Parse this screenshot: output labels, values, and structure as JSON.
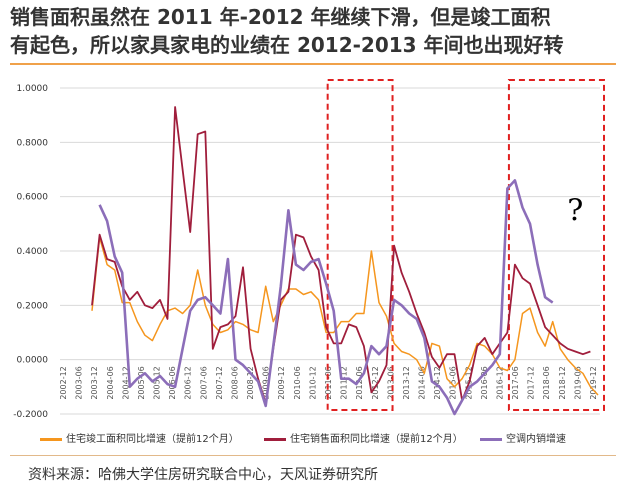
{
  "title": {
    "line1": "销售面积虽然在 2011 年-2012 年继续下滑，但是竣工面积",
    "line2": "有起色，所以家具家电的业绩在 2012-2013 年间也出现好转"
  },
  "source": "资料来源：哈佛大学住房研究联合中心，天风证券研究所",
  "colors": {
    "orange": "#f5961e",
    "crimson": "#a01e3c",
    "purple": "#8c6eb9",
    "highlight": "#e02020"
  },
  "annotation": "?",
  "chart_data": {
    "type": "line",
    "ylim": [
      -0.2,
      1.0
    ],
    "yticks": [
      -0.2,
      0.0,
      0.2,
      0.4,
      0.6,
      0.8,
      1.0
    ],
    "ytick_labels": [
      "-0.2000",
      "0.0000",
      "0.2000",
      "0.4000",
      "0.6000",
      "0.8000",
      "1.0000"
    ],
    "xstart": 2003.0,
    "xend": 2019.75,
    "xtick_labels": [
      "2002-12",
      "2003-06",
      "2003-12",
      "2004-06",
      "2004-12",
      "2005-06",
      "2005-12",
      "2006-06",
      "2006-12",
      "2007-06",
      "2007-12",
      "2008-06",
      "2008-12",
      "2009-06",
      "2009-12",
      "2010-06",
      "2010-12",
      "2011-06",
      "2011-12",
      "2012-06",
      "2012-12",
      "2013-06",
      "2013-12",
      "2014-06",
      "2014-12",
      "2015-06",
      "2015-12",
      "2016-06",
      "2016-12",
      "2017-06",
      "2017-12",
      "2018-06",
      "2018-12",
      "2019-06",
      "2019-12"
    ],
    "highlight_ranges": [
      [
        2011.0,
        2012.75
      ],
      [
        2017.0,
        2019.75
      ]
    ],
    "annotation": {
      "text": "?",
      "x": 2019.0,
      "y": 0.55
    },
    "series": [
      {
        "name": "住宅竣工面积同比增速（提前12个月）",
        "color": "#f5961e",
        "points": [
          [
            2003.0,
            0.18
          ],
          [
            2003.25,
            0.45
          ],
          [
            2003.5,
            0.35
          ],
          [
            2003.75,
            0.33
          ],
          [
            2004.0,
            0.21
          ],
          [
            2004.25,
            0.21
          ],
          [
            2004.5,
            0.14
          ],
          [
            2004.75,
            0.09
          ],
          [
            2005.0,
            0.07
          ],
          [
            2005.25,
            0.13
          ],
          [
            2005.5,
            0.18
          ],
          [
            2005.75,
            0.19
          ],
          [
            2006.0,
            0.17
          ],
          [
            2006.25,
            0.2
          ],
          [
            2006.5,
            0.33
          ],
          [
            2006.75,
            0.2
          ],
          [
            2007.0,
            0.13
          ],
          [
            2007.25,
            0.1
          ],
          [
            2007.5,
            0.11
          ],
          [
            2007.75,
            0.14
          ],
          [
            2008.0,
            0.13
          ],
          [
            2008.25,
            0.11
          ],
          [
            2008.5,
            0.1
          ],
          [
            2008.75,
            0.27
          ],
          [
            2009.0,
            0.14
          ],
          [
            2009.25,
            0.2
          ],
          [
            2009.5,
            0.26
          ],
          [
            2009.75,
            0.26
          ],
          [
            2010.0,
            0.24
          ],
          [
            2010.25,
            0.25
          ],
          [
            2010.5,
            0.22
          ],
          [
            2010.75,
            0.1
          ],
          [
            2011.0,
            0.1
          ],
          [
            2011.25,
            0.14
          ],
          [
            2011.5,
            0.14
          ],
          [
            2011.75,
            0.17
          ],
          [
            2012.0,
            0.17
          ],
          [
            2012.25,
            0.4
          ],
          [
            2012.5,
            0.21
          ],
          [
            2012.75,
            0.16
          ],
          [
            2013.0,
            0.06
          ],
          [
            2013.25,
            0.03
          ],
          [
            2013.5,
            0.02
          ],
          [
            2013.75,
            0.0
          ],
          [
            2014.0,
            -0.05
          ],
          [
            2014.25,
            0.06
          ],
          [
            2014.5,
            0.05
          ],
          [
            2014.75,
            -0.07
          ],
          [
            2015.0,
            -0.1
          ],
          [
            2015.25,
            -0.07
          ],
          [
            2015.5,
            -0.02
          ],
          [
            2015.75,
            0.06
          ],
          [
            2016.0,
            0.05
          ],
          [
            2016.25,
            0.02
          ],
          [
            2016.5,
            -0.03
          ],
          [
            2016.75,
            -0.04
          ],
          [
            2017.0,
            0.0
          ],
          [
            2017.25,
            0.17
          ],
          [
            2017.5,
            0.19
          ],
          [
            2017.75,
            0.1
          ],
          [
            2018.0,
            0.05
          ],
          [
            2018.25,
            0.14
          ],
          [
            2018.5,
            0.04
          ],
          [
            2018.75,
            0.0
          ],
          [
            2019.0,
            -0.03
          ],
          [
            2019.25,
            -0.05
          ],
          [
            2019.5,
            -0.1
          ],
          [
            2019.75,
            -0.13
          ]
        ]
      },
      {
        "name": "住宅销售面积同比增速（提前12个月）",
        "color": "#a01e3c",
        "points": [
          [
            2003.0,
            0.2
          ],
          [
            2003.25,
            0.46
          ],
          [
            2003.5,
            0.37
          ],
          [
            2003.75,
            0.36
          ],
          [
            2004.0,
            0.27
          ],
          [
            2004.25,
            0.22
          ],
          [
            2004.5,
            0.25
          ],
          [
            2004.75,
            0.2
          ],
          [
            2005.0,
            0.19
          ],
          [
            2005.25,
            0.22
          ],
          [
            2005.5,
            0.15
          ],
          [
            2005.75,
            0.93
          ],
          [
            2006.0,
            0.7
          ],
          [
            2006.25,
            0.47
          ],
          [
            2006.5,
            0.83
          ],
          [
            2006.75,
            0.84
          ],
          [
            2007.0,
            0.04
          ],
          [
            2007.25,
            0.12
          ],
          [
            2007.5,
            0.13
          ],
          [
            2007.75,
            0.16
          ],
          [
            2008.0,
            0.34
          ],
          [
            2008.25,
            0.04
          ],
          [
            2008.5,
            -0.07
          ],
          [
            2008.75,
            -0.16
          ],
          [
            2009.0,
            0.04
          ],
          [
            2009.25,
            0.22
          ],
          [
            2009.5,
            0.25
          ],
          [
            2009.75,
            0.46
          ],
          [
            2010.0,
            0.45
          ],
          [
            2010.25,
            0.38
          ],
          [
            2010.5,
            0.33
          ],
          [
            2010.75,
            0.12
          ],
          [
            2011.0,
            0.06
          ],
          [
            2011.25,
            0.06
          ],
          [
            2011.5,
            0.13
          ],
          [
            2011.75,
            0.12
          ],
          [
            2012.0,
            0.05
          ],
          [
            2012.25,
            -0.12
          ],
          [
            2012.5,
            -0.08
          ],
          [
            2012.75,
            -0.02
          ],
          [
            2013.0,
            0.42
          ],
          [
            2013.25,
            0.32
          ],
          [
            2013.5,
            0.25
          ],
          [
            2013.75,
            0.17
          ],
          [
            2014.0,
            0.1
          ],
          [
            2014.25,
            0.01
          ],
          [
            2014.5,
            -0.03
          ],
          [
            2014.75,
            0.02
          ],
          [
            2015.0,
            0.02
          ],
          [
            2015.25,
            -0.15
          ],
          [
            2015.5,
            -0.08
          ],
          [
            2015.75,
            0.05
          ],
          [
            2016.0,
            0.08
          ],
          [
            2016.25,
            0.02
          ],
          [
            2016.5,
            0.06
          ],
          [
            2016.75,
            0.1
          ],
          [
            2017.0,
            0.35
          ],
          [
            2017.25,
            0.3
          ],
          [
            2017.5,
            0.28
          ],
          [
            2017.75,
            0.2
          ],
          [
            2018.0,
            0.12
          ],
          [
            2018.25,
            0.09
          ],
          [
            2018.5,
            0.06
          ],
          [
            2018.75,
            0.04
          ],
          [
            2019.0,
            0.03
          ],
          [
            2019.25,
            0.02
          ],
          [
            2019.5,
            0.03
          ]
        ]
      },
      {
        "name": "空调内销增速",
        "color": "#8c6eb9",
        "points": [
          [
            2003.25,
            0.57
          ],
          [
            2003.5,
            0.51
          ],
          [
            2003.75,
            0.38
          ],
          [
            2004.0,
            0.32
          ],
          [
            2004.25,
            -0.1
          ],
          [
            2004.5,
            -0.07
          ],
          [
            2004.75,
            -0.05
          ],
          [
            2005.0,
            -0.08
          ],
          [
            2005.25,
            -0.06
          ],
          [
            2005.5,
            -0.09
          ],
          [
            2005.75,
            -0.1
          ],
          [
            2006.0,
            0.04
          ],
          [
            2006.25,
            0.18
          ],
          [
            2006.5,
            0.22
          ],
          [
            2006.75,
            0.23
          ],
          [
            2007.0,
            0.2
          ],
          [
            2007.25,
            0.17
          ],
          [
            2007.5,
            0.37
          ],
          [
            2007.75,
            0.0
          ],
          [
            2008.0,
            -0.02
          ],
          [
            2008.25,
            -0.05
          ],
          [
            2008.5,
            -0.08
          ],
          [
            2008.75,
            -0.17
          ],
          [
            2009.0,
            0.05
          ],
          [
            2009.25,
            0.27
          ],
          [
            2009.5,
            0.55
          ],
          [
            2009.75,
            0.35
          ],
          [
            2010.0,
            0.33
          ],
          [
            2010.25,
            0.36
          ],
          [
            2010.5,
            0.37
          ],
          [
            2010.75,
            0.28
          ],
          [
            2011.0,
            0.18
          ],
          [
            2011.25,
            -0.07
          ],
          [
            2011.5,
            -0.07
          ],
          [
            2011.75,
            -0.09
          ],
          [
            2012.0,
            -0.05
          ],
          [
            2012.25,
            0.05
          ],
          [
            2012.5,
            0.02
          ],
          [
            2012.75,
            0.05
          ],
          [
            2013.0,
            0.22
          ],
          [
            2013.25,
            0.2
          ],
          [
            2013.5,
            0.17
          ],
          [
            2013.75,
            0.15
          ],
          [
            2014.0,
            0.08
          ],
          [
            2014.25,
            -0.08
          ],
          [
            2014.5,
            -0.1
          ],
          [
            2014.75,
            -0.14
          ],
          [
            2015.0,
            -0.2
          ],
          [
            2015.25,
            -0.15
          ],
          [
            2015.5,
            -0.1
          ],
          [
            2015.75,
            -0.08
          ],
          [
            2016.0,
            -0.05
          ],
          [
            2016.25,
            -0.02
          ],
          [
            2016.5,
            0.02
          ],
          [
            2016.75,
            0.63
          ],
          [
            2017.0,
            0.66
          ],
          [
            2017.25,
            0.56
          ],
          [
            2017.5,
            0.5
          ],
          [
            2017.75,
            0.35
          ],
          [
            2018.0,
            0.23
          ],
          [
            2018.25,
            0.21
          ]
        ]
      }
    ]
  }
}
